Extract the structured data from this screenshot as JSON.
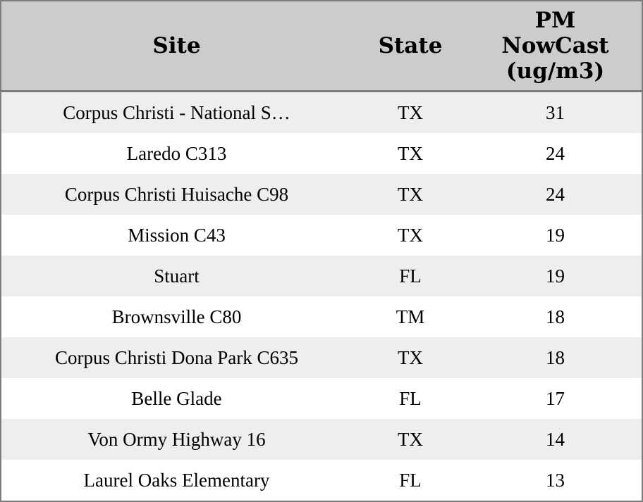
{
  "chart_data": {
    "type": "table",
    "columns": [
      "Site",
      "State",
      "PM NowCast (ug/m3)"
    ],
    "rows": [
      [
        "Corpus Christi - National S…",
        "TX",
        31
      ],
      [
        "Laredo C313",
        "TX",
        24
      ],
      [
        "Corpus Christi Huisache C98",
        "TX",
        24
      ],
      [
        "Mission C43",
        "TX",
        19
      ],
      [
        "Stuart",
        "FL",
        19
      ],
      [
        "Brownsville C80",
        "TM",
        18
      ],
      [
        "Corpus Christi Dona Park C635",
        "TX",
        18
      ],
      [
        "Belle Glade",
        "FL",
        17
      ],
      [
        "Von Ormy Highway 16",
        "TX",
        14
      ],
      [
        "Laurel Oaks Elementary",
        "FL",
        13
      ]
    ],
    "layout_hints": {
      "striped": true,
      "sort": "PM NowCast (ug/m3) descending",
      "grid": "outer border and header separator only",
      "alignment": "all cells centered"
    }
  },
  "colors": {
    "header_bg": "#cccccc",
    "row_stripe_bg": "#eeeeee",
    "row_bg": "#ffffff",
    "border": "#7d7d7d",
    "text": "#000000"
  }
}
